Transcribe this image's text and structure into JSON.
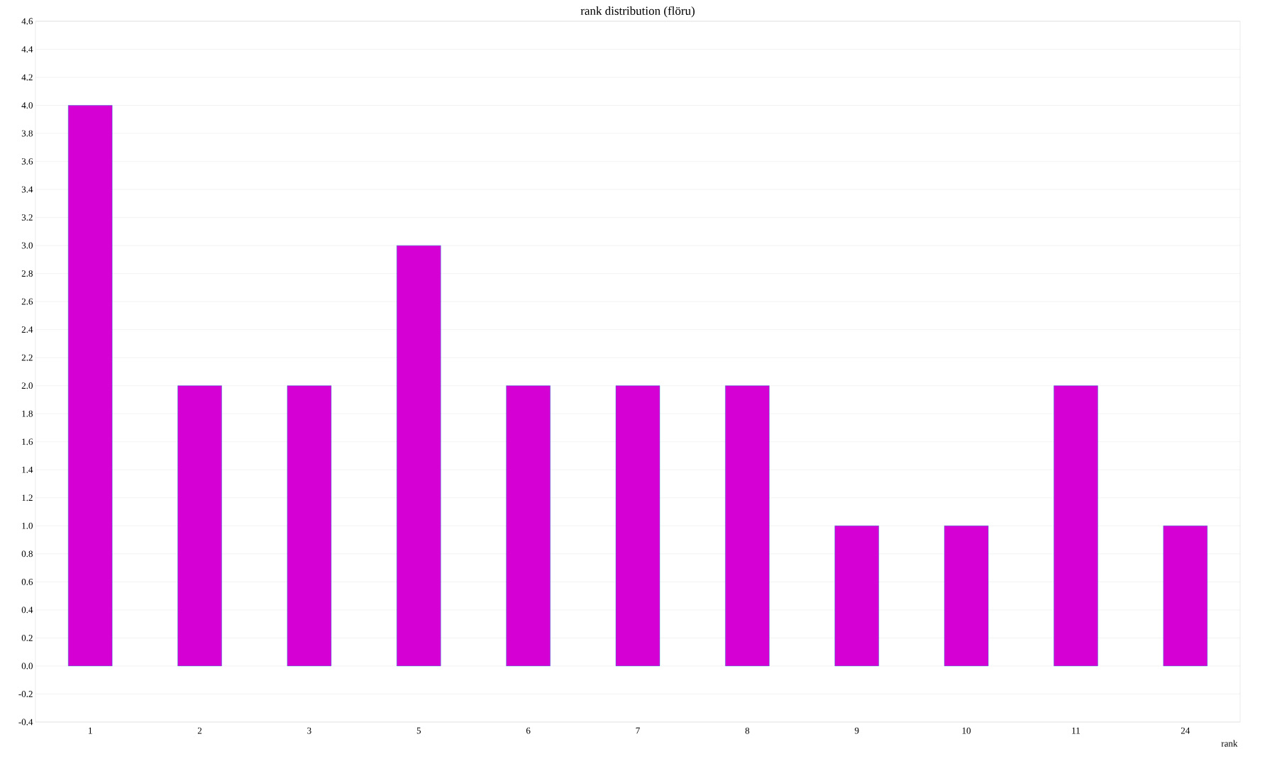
{
  "chart_data": {
    "type": "bar",
    "title": "rank distribution (flöru)",
    "xlabel": "rank",
    "categories": [
      "1",
      "2",
      "3",
      "5",
      "6",
      "7",
      "8",
      "9",
      "10",
      "11",
      "24"
    ],
    "values": [
      4,
      2,
      2,
      3,
      2,
      2,
      2,
      1,
      1,
      2,
      1
    ],
    "color": "#d400d4",
    "ylim": [
      -0.4,
      4.6
    ],
    "yticks": [
      -0.4,
      -0.2,
      {
        "value": 0,
        "label": "0.0"
      },
      0.2,
      0.4,
      0.6,
      0.8,
      {
        "value": 1,
        "label": "1.0"
      },
      1.2,
      1.4,
      1.6,
      1.8,
      {
        "value": 2,
        "label": "2.0"
      },
      2.2,
      2.4,
      2.6,
      2.8,
      {
        "value": 3,
        "label": "3.0"
      },
      3.2,
      3.4,
      3.6,
      3.8,
      {
        "value": 4,
        "label": "4.0"
      },
      4.2,
      4.4,
      4.6
    ],
    "grid": "y"
  }
}
